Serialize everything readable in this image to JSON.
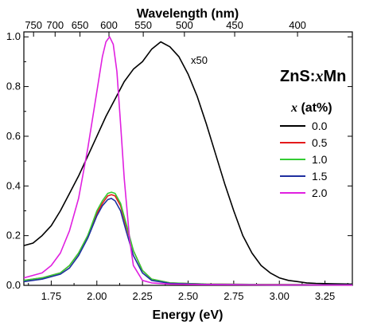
{
  "chart_data": {
    "type": "line",
    "xlabel": "Energy (eV)",
    "x2label": "Wavelength (nm)",
    "ylabel": "",
    "xlim": [
      1.6,
      3.4
    ],
    "ylim": [
      0.0,
      1.02
    ],
    "xticks": [
      1.75,
      2.0,
      2.25,
      2.5,
      2.75,
      3.0,
      3.25
    ],
    "xtick_labels": [
      "1.75",
      "2.00",
      "2.25",
      "2.50",
      "2.75",
      "3.00",
      "3.25"
    ],
    "yticks": [
      0.0,
      0.2,
      0.4,
      0.6,
      0.8,
      1.0
    ],
    "ytick_labels": [
      "0.0",
      "0.2",
      "0.4",
      "0.6",
      "0.8",
      "1.0"
    ],
    "top_ticks_nm": [
      750,
      700,
      650,
      600,
      550,
      500,
      450,
      400
    ],
    "top_tick_labels": [
      "750",
      "700",
      "650",
      "600",
      "550",
      "500",
      "450",
      "400"
    ],
    "annotation": "x50",
    "sample_label_prefix": "ZnS:",
    "sample_label_var": "x",
    "sample_label_suffix": "Mn",
    "legend": {
      "title_var": "x",
      "title_rest": " (at%)",
      "placement": "right"
    },
    "series": [
      {
        "name": "0.0",
        "color": "#000000",
        "x": [
          1.6,
          1.65,
          1.7,
          1.75,
          1.8,
          1.85,
          1.9,
          1.95,
          2.0,
          2.05,
          2.1,
          2.15,
          2.2,
          2.25,
          2.3,
          2.35,
          2.4,
          2.45,
          2.5,
          2.55,
          2.6,
          2.65,
          2.7,
          2.75,
          2.8,
          2.85,
          2.9,
          2.95,
          3.0,
          3.05,
          3.1,
          3.15,
          3.2,
          3.3,
          3.4
        ],
        "y": [
          0.16,
          0.17,
          0.2,
          0.24,
          0.3,
          0.37,
          0.44,
          0.52,
          0.6,
          0.68,
          0.75,
          0.82,
          0.87,
          0.9,
          0.95,
          0.98,
          0.96,
          0.92,
          0.85,
          0.76,
          0.65,
          0.53,
          0.41,
          0.3,
          0.2,
          0.13,
          0.08,
          0.05,
          0.03,
          0.02,
          0.015,
          0.01,
          0.008,
          0.006,
          0.005
        ]
      },
      {
        "name": "0.5",
        "color": "#e41a1c",
        "x": [
          1.6,
          1.7,
          1.8,
          1.85,
          1.9,
          1.95,
          2.0,
          2.03,
          2.06,
          2.08,
          2.1,
          2.13,
          2.16,
          2.2,
          2.25,
          2.3,
          2.4,
          2.6,
          3.0,
          3.4
        ],
        "y": [
          0.02,
          0.03,
          0.05,
          0.08,
          0.13,
          0.2,
          0.29,
          0.33,
          0.36,
          0.365,
          0.36,
          0.32,
          0.24,
          0.14,
          0.06,
          0.025,
          0.01,
          0.005,
          0.003,
          0.002
        ]
      },
      {
        "name": "1.0",
        "color": "#33cc33",
        "x": [
          1.6,
          1.7,
          1.8,
          1.85,
          1.9,
          1.95,
          2.0,
          2.03,
          2.06,
          2.08,
          2.1,
          2.13,
          2.16,
          2.2,
          2.25,
          2.3,
          2.4,
          2.6,
          3.0,
          3.4
        ],
        "y": [
          0.02,
          0.03,
          0.05,
          0.08,
          0.13,
          0.2,
          0.3,
          0.34,
          0.37,
          0.375,
          0.37,
          0.33,
          0.25,
          0.14,
          0.06,
          0.025,
          0.01,
          0.005,
          0.003,
          0.002
        ]
      },
      {
        "name": "1.5",
        "color": "#1f2f9f",
        "x": [
          1.6,
          1.7,
          1.8,
          1.85,
          1.9,
          1.95,
          2.0,
          2.03,
          2.06,
          2.08,
          2.1,
          2.13,
          2.16,
          2.2,
          2.25,
          2.3,
          2.4,
          2.6,
          3.0,
          3.4
        ],
        "y": [
          0.015,
          0.025,
          0.045,
          0.07,
          0.12,
          0.19,
          0.28,
          0.32,
          0.345,
          0.35,
          0.34,
          0.3,
          0.22,
          0.12,
          0.05,
          0.02,
          0.008,
          0.004,
          0.002,
          0.002
        ]
      },
      {
        "name": "2.0",
        "color": "#e020e0",
        "x": [
          1.6,
          1.7,
          1.75,
          1.8,
          1.85,
          1.9,
          1.95,
          2.0,
          2.03,
          2.05,
          2.07,
          2.09,
          2.11,
          2.13,
          2.15,
          2.18,
          2.2,
          2.25,
          2.3,
          2.4,
          2.6,
          3.0,
          3.4
        ],
        "y": [
          0.03,
          0.05,
          0.08,
          0.13,
          0.22,
          0.35,
          0.55,
          0.78,
          0.92,
          0.98,
          1.0,
          0.97,
          0.86,
          0.65,
          0.43,
          0.18,
          0.08,
          0.02,
          0.01,
          0.005,
          0.003,
          0.002,
          0.001
        ]
      }
    ]
  }
}
